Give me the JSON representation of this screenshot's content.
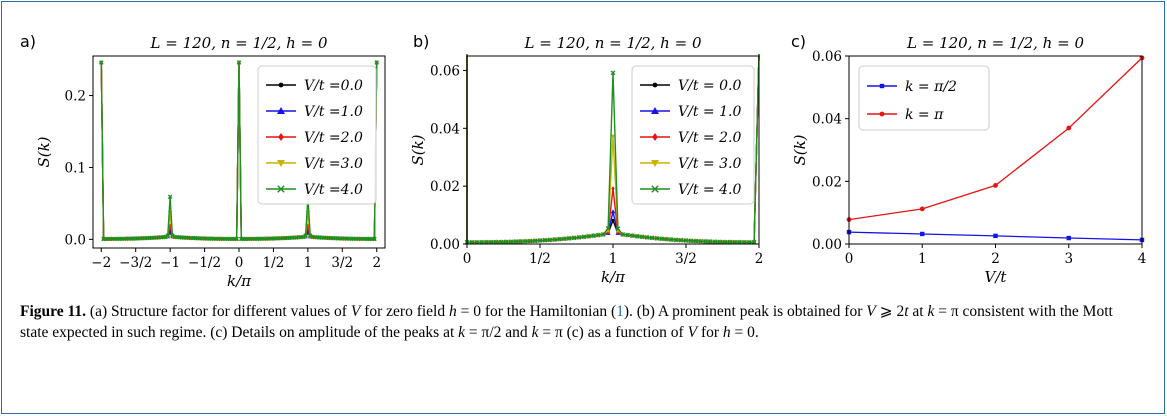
{
  "figure": {
    "colors": {
      "s0": "#000000",
      "s1": "#1414e6",
      "s2": "#e61414",
      "s3": "#c8b400",
      "s4": "#1f8f1f",
      "frame": "#2a6fa8"
    },
    "panels": [
      {
        "letter": "a)",
        "title": "L = 120, n = 1/2, h = 0",
        "xlabel": "k/π",
        "ylabel": "S(k)",
        "xticks": [
          "−2",
          "−3/2",
          "−1",
          "−1/2",
          "0",
          "1/2",
          "1",
          "3/2",
          "2"
        ],
        "yticks": [
          "0.0",
          "0.1",
          "0.2"
        ],
        "legend": [
          "V/t =0.0",
          "V/t =1.0",
          "V/t =2.0",
          "V/t =3.0",
          "V/t =4.0"
        ]
      },
      {
        "letter": "b)",
        "title": "L = 120, n = 1/2, h = 0",
        "xlabel": "k/π",
        "ylabel": "S(k)",
        "xticks": [
          "0",
          "1/2",
          "1",
          "3/2",
          "2"
        ],
        "yticks": [
          "0.00",
          "0.02",
          "0.04",
          "0.06"
        ],
        "legend": [
          "V/t = 0.0",
          "V/t = 1.0",
          "V/t = 2.0",
          "V/t = 3.0",
          "V/t = 4.0"
        ]
      },
      {
        "letter": "c)",
        "title": "L = 120, n = 1/2, h = 0",
        "xlabel": "V/t",
        "ylabel": "S(k)",
        "xticks": [
          "0",
          "1",
          "2",
          "3",
          "4"
        ],
        "yticks": [
          "0.00",
          "0.02",
          "0.04",
          "0.06"
        ],
        "legend": [
          "k = π/2",
          "k = π"
        ]
      }
    ]
  },
  "chart_data": [
    {
      "type": "line",
      "title": "L = 120, n = 1/2, h = 0",
      "xlabel": "k/π",
      "ylabel": "S(k)",
      "xlim": [
        -2.12,
        2.12
      ],
      "ylim": [
        -0.012,
        0.255
      ],
      "peaks": {
        "k_over_pi": [
          -2,
          -1,
          0,
          1,
          2
        ],
        "series": [
          {
            "name": "V/t =0.0",
            "values": [
              0.246,
              0.008,
              0.246,
              0.008,
              0.246
            ]
          },
          {
            "name": "V/t =1.0",
            "values": [
              0.246,
              0.011,
              0.246,
              0.011,
              0.246
            ]
          },
          {
            "name": "V/t =2.0",
            "values": [
              0.246,
              0.019,
              0.246,
              0.019,
              0.246
            ]
          },
          {
            "name": "V/t =3.0",
            "values": [
              0.246,
              0.037,
              0.246,
              0.037,
              0.246
            ]
          },
          {
            "name": "V/t =4.0",
            "values": [
              0.246,
              0.059,
              0.246,
              0.059,
              0.246
            ]
          }
        ]
      }
    },
    {
      "type": "line",
      "title": "L = 120, n = 1/2, h = 0",
      "xlabel": "k/π",
      "ylabel": "S(k)",
      "xlim": [
        0,
        2
      ],
      "ylim": [
        0,
        0.065
      ],
      "series": [
        {
          "name": "V/t = 0.0",
          "peak_at_k_pi": 0.008
        },
        {
          "name": "V/t = 1.0",
          "peak_at_k_pi": 0.011
        },
        {
          "name": "V/t = 2.0",
          "peak_at_k_pi": 0.019
        },
        {
          "name": "V/t = 3.0",
          "peak_at_k_pi": 0.037
        },
        {
          "name": "V/t = 4.0",
          "peak_at_k_pi": 0.059
        }
      ]
    },
    {
      "type": "line",
      "title": "L = 120, n = 1/2, h = 0",
      "xlabel": "V/t",
      "ylabel": "S(k)",
      "xlim": [
        0,
        4
      ],
      "ylim": [
        0,
        0.06
      ],
      "x": [
        0,
        1,
        2,
        3,
        4
      ],
      "series": [
        {
          "name": "k = π/2",
          "values": [
            0.0038,
            0.0032,
            0.0026,
            0.0019,
            0.0013
          ]
        },
        {
          "name": "k = π",
          "values": [
            0.0078,
            0.0112,
            0.0187,
            0.037,
            0.0594
          ]
        }
      ]
    }
  ],
  "caption": {
    "label": "Figure 11.",
    "p1": " (a) Structure factor for different values of ",
    "v1": "V",
    "p2": " for zero field ",
    "h1": "h",
    "p3": " = 0 for the Hamiltonian (",
    "ref": "1",
    "p4": "). (b) A prominent peak is obtained for ",
    "v2": "V",
    "p5": " ⩾ 2",
    "t1": "t",
    "p6": " at ",
    "k1": "k",
    "p7": " = π consistent with the Mott state expected in such regime. (c) Details on amplitude of the peaks at ",
    "k2": "k",
    "p8": " = π/2 and ",
    "k3": "k",
    "p9": " = π (c) as a function of ",
    "v3": "V",
    "p10": " for ",
    "h2": "h",
    "p11": " = 0."
  }
}
